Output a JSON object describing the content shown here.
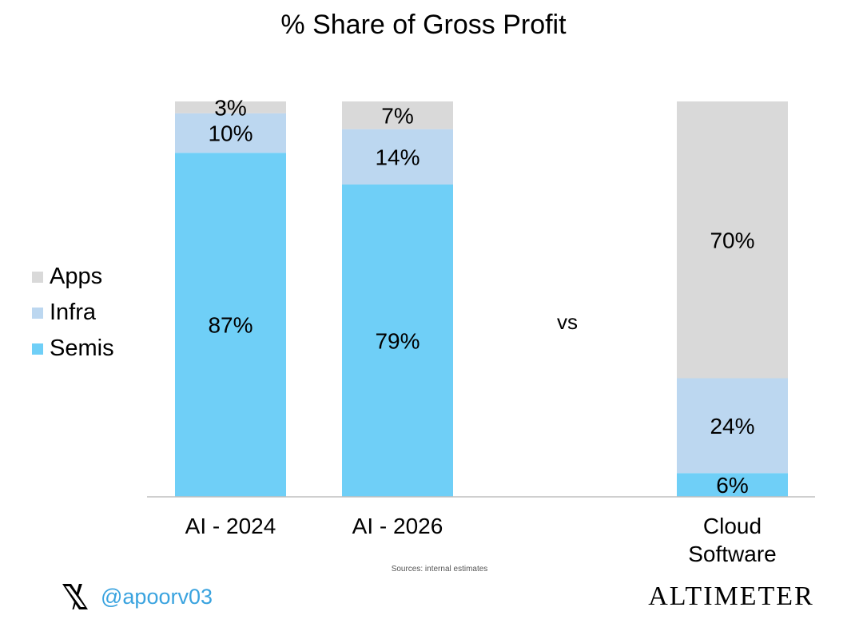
{
  "chart_data": {
    "type": "bar",
    "stacked": true,
    "title": "% Share of Gross Profit",
    "categories": [
      [
        "AI - 2024"
      ],
      [
        "AI - 2026"
      ],
      [
        "Cloud",
        "Software"
      ]
    ],
    "series": [
      {
        "name": "Semis",
        "color": "#6fcff7",
        "values": [
          87,
          79,
          6
        ],
        "labels": [
          "87%",
          "79%",
          "6%"
        ]
      },
      {
        "name": "Infra",
        "color": "#bcd7f0",
        "values": [
          10,
          14,
          24
        ],
        "labels": [
          "10%",
          "14%",
          "24%"
        ]
      },
      {
        "name": "Apps",
        "color": "#d9d9d9",
        "values": [
          3,
          7,
          70
        ],
        "labels": [
          "3%",
          "7%",
          "70%"
        ]
      }
    ],
    "legend": [
      {
        "name": "Apps",
        "color": "#d9d9d9"
      },
      {
        "name": "Infra",
        "color": "#bcd7f0"
      },
      {
        "name": "Semis",
        "color": "#6fcff7"
      }
    ],
    "legend_position": "left",
    "ylim": [
      0,
      100
    ],
    "annotation": "vs",
    "source": "Sources: internal estimates"
  },
  "footer": {
    "handle": "@apoorv03",
    "brand": "ALTIMETER",
    "x_icon": "x-logo-icon"
  }
}
